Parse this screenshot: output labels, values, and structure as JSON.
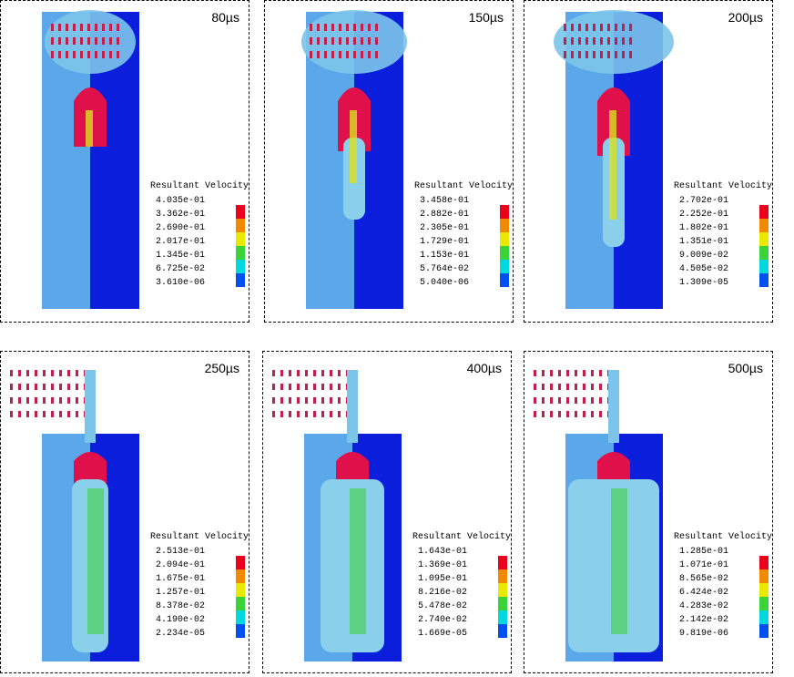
{
  "panels": [
    {
      "time": "80µs",
      "legend": {
        "title": "Resultant Velocity",
        "values": [
          "4.035e-01",
          "3.362e-01",
          "2.690e-01",
          "2.017e-01",
          "1.345e-01",
          "6.725e-02",
          "3.610e-06"
        ]
      }
    },
    {
      "time": "150µs",
      "legend": {
        "title": "Resultant Velocity",
        "values": [
          "3.458e-01",
          "2.882e-01",
          "2.305e-01",
          "1.729e-01",
          "1.153e-01",
          "5.764e-02",
          "5.040e-06"
        ]
      }
    },
    {
      "time": "200µs",
      "legend": {
        "title": "Resultant Velocity",
        "values": [
          "2.702e-01",
          "2.252e-01",
          "1.802e-01",
          "1.351e-01",
          "9.009e-02",
          "4.505e-02",
          "1.309e-05"
        ]
      }
    },
    {
      "time": "250µs",
      "legend": {
        "title": "Resultant Velocity",
        "values": [
          "2.513e-01",
          "2.094e-01",
          "1.675e-01",
          "1.257e-01",
          "8.378e-02",
          "4.190e-02",
          "2.234e-05"
        ]
      }
    },
    {
      "time": "400µs",
      "legend": {
        "title": "Resultant Velocity",
        "values": [
          "1.643e-01",
          "1.369e-01",
          "1.095e-01",
          "8.216e-02",
          "5.478e-02",
          "2.740e-02",
          "1.669e-05"
        ]
      }
    },
    {
      "time": "500µs",
      "legend": {
        "title": "Resultant Velocity",
        "values": [
          "1.285e-01",
          "1.071e-01",
          "8.565e-02",
          "6.424e-02",
          "4.283e-02",
          "2.142e-02",
          "9.819e-06"
        ]
      }
    }
  ]
}
